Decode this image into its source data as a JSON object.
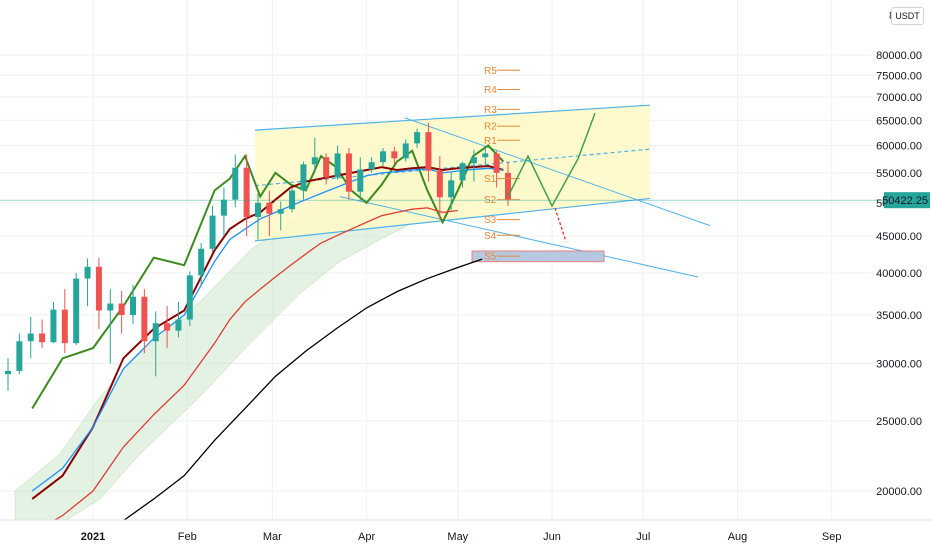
{
  "quote_currency": "USDT",
  "last_price": "50422.25",
  "colors": {
    "channel_fill": "#fff9c4",
    "channel_line": "#4fb3e8",
    "ma_green": "#3d8b1e",
    "ma_darkred": "#8b0000",
    "ma_blue": "#1e90ff",
    "ma_black": "#000000",
    "ma_red": "#e03c31",
    "cloud_fill": "#c8e6c9",
    "candle_up": "#26a69a",
    "candle_down": "#ef5350",
    "pivot": "#e6883a",
    "target_box": "#b0c4de",
    "last_price_line": "#26a69a"
  },
  "chart_data": {
    "type": "candlestick",
    "title": "",
    "xlabel": "",
    "ylabel": "",
    "log_scale": true,
    "grid": true,
    "ylim": [
      17000,
      85000
    ],
    "x_ticks": [
      "2021",
      "Feb",
      "Mar",
      "Apr",
      "May",
      "Jun",
      "Jul",
      "Aug",
      "Sep"
    ],
    "y_ticks": [
      {
        "value": 20000,
        "label": "20000.00"
      },
      {
        "value": 25000,
        "label": "25000.00"
      },
      {
        "value": 30000,
        "label": "30000.00"
      },
      {
        "value": 35000,
        "label": "35000.00"
      },
      {
        "value": 40000,
        "label": "40000.00"
      },
      {
        "value": 45000,
        "label": "45000.00"
      },
      {
        "value": 50000,
        "label": "50000.00"
      },
      {
        "value": 55000,
        "label": "55000.00"
      },
      {
        "value": 60000,
        "label": "60000.00"
      },
      {
        "value": 65000,
        "label": "65000.00"
      },
      {
        "value": 70000,
        "label": "70000.00"
      },
      {
        "value": 75000,
        "label": "75000.00"
      },
      {
        "value": 80000,
        "label": "80000.00"
      }
    ],
    "top_clipped_tick": "8",
    "pivot_levels": [
      {
        "label": "R5",
        "value": 76200
      },
      {
        "label": "R4",
        "value": 71700
      },
      {
        "label": "R3",
        "value": 67300
      },
      {
        "label": "R2",
        "value": 63800
      },
      {
        "label": "R1",
        "value": 61000
      },
      {
        "label": "S1",
        "value": 54000
      },
      {
        "label": "S2",
        "value": 50500
      },
      {
        "label": "S3",
        "value": 47400
      },
      {
        "label": "S4",
        "value": 45100
      },
      {
        "label": "S5",
        "value": 42200
      }
    ],
    "candles": [
      [
        29000,
        30500,
        27500,
        29300
      ],
      [
        29300,
        33000,
        29000,
        32200
      ],
      [
        32200,
        34800,
        30500,
        33000
      ],
      [
        33000,
        34500,
        31500,
        32100
      ],
      [
        32100,
        36500,
        32000,
        35600
      ],
      [
        35600,
        38000,
        31000,
        32000
      ],
      [
        32000,
        40000,
        31800,
        39300
      ],
      [
        39300,
        41900,
        36000,
        40800
      ],
      [
        40800,
        42000,
        33500,
        35500
      ],
      [
        35500,
        38000,
        30000,
        36300
      ],
      [
        36300,
        37800,
        33000,
        35000
      ],
      [
        35000,
        38500,
        34000,
        37100
      ],
      [
        37100,
        38000,
        31000,
        32200
      ],
      [
        32200,
        35400,
        28800,
        34100
      ],
      [
        34100,
        36000,
        31500,
        33300
      ],
      [
        33300,
        36500,
        32600,
        34500
      ],
      [
        34500,
        40200,
        33800,
        39700
      ],
      [
        39700,
        44000,
        38500,
        43200
      ],
      [
        43200,
        49500,
        42800,
        48000
      ],
      [
        48000,
        52500,
        45000,
        50500
      ],
      [
        50500,
        58300,
        49300,
        55900
      ],
      [
        55900,
        58300,
        45000,
        47800
      ],
      [
        47800,
        51500,
        44500,
        50000
      ],
      [
        50000,
        52000,
        45000,
        48300
      ],
      [
        48300,
        50200,
        45800,
        49000
      ],
      [
        49000,
        52400,
        48500,
        52000
      ],
      [
        52000,
        57000,
        50500,
        56500
      ],
      [
        56500,
        61500,
        55000,
        57800
      ],
      [
        57800,
        58500,
        53000,
        54200
      ],
      [
        54200,
        60000,
        53800,
        58500
      ],
      [
        58500,
        59500,
        50500,
        51800
      ],
      [
        51800,
        57800,
        50300,
        55600
      ],
      [
        55600,
        57800,
        55000,
        56900
      ],
      [
        56900,
        59500,
        56200,
        58900
      ],
      [
        58900,
        59800,
        56500,
        57600
      ],
      [
        57600,
        61200,
        57000,
        60400
      ],
      [
        60400,
        63300,
        59500,
        62600
      ],
      [
        62600,
        64500,
        53500,
        55400
      ],
      [
        55400,
        58000,
        47400,
        50900
      ],
      [
        50900,
        55000,
        48800,
        53700
      ],
      [
        53700,
        57000,
        52500,
        56700
      ],
      [
        56700,
        59200,
        53500,
        57800
      ],
      [
        57800,
        59500,
        56200,
        58500
      ],
      [
        58500,
        59000,
        52500,
        55000
      ],
      [
        55000,
        57000,
        49500,
        50422.25
      ]
    ],
    "series": [
      {
        "name": "",
        "type": "line",
        "color_key": "ma_green",
        "values": [
          [
            0,
            26000
          ],
          [
            10,
            30500
          ],
          [
            20,
            31500
          ],
          [
            30,
            36000
          ],
          [
            40,
            42000
          ],
          [
            50,
            41000
          ],
          [
            60,
            52000
          ],
          [
            65,
            54000
          ],
          [
            70,
            58000
          ],
          [
            75,
            51000
          ],
          [
            80,
            55000
          ],
          [
            85,
            53000
          ],
          [
            90,
            52000
          ],
          [
            95,
            58000
          ],
          [
            100,
            56000
          ],
          [
            105,
            52000
          ],
          [
            110,
            50000
          ],
          [
            115,
            53000
          ],
          [
            120,
            57000
          ],
          [
            125,
            59000
          ],
          [
            130,
            52000
          ],
          [
            135,
            47000
          ],
          [
            140,
            52000
          ],
          [
            145,
            58000
          ],
          [
            150,
            60000
          ],
          [
            155,
            57000
          ]
        ]
      },
      {
        "name": "",
        "type": "line",
        "color_key": "ma_darkred",
        "values": [
          [
            0,
            19500
          ],
          [
            10,
            21000
          ],
          [
            20,
            24500
          ],
          [
            30,
            30500
          ],
          [
            40,
            33500
          ],
          [
            50,
            35500
          ],
          [
            60,
            43000
          ],
          [
            65,
            46000
          ],
          [
            70,
            47500
          ],
          [
            75,
            48500
          ],
          [
            80,
            50500
          ],
          [
            85,
            52500
          ],
          [
            90,
            53500
          ],
          [
            95,
            54000
          ],
          [
            100,
            54500
          ],
          [
            105,
            55000
          ],
          [
            110,
            55500
          ],
          [
            115,
            56000
          ],
          [
            120,
            55500
          ],
          [
            125,
            55800
          ],
          [
            130,
            56000
          ],
          [
            135,
            55500
          ],
          [
            140,
            55800
          ],
          [
            145,
            56000
          ],
          [
            150,
            56200
          ],
          [
            155,
            55500
          ]
        ]
      },
      {
        "name": "",
        "type": "line",
        "color_key": "ma_blue",
        "values": [
          [
            0,
            20000
          ],
          [
            10,
            21500
          ],
          [
            20,
            24500
          ],
          [
            30,
            29500
          ],
          [
            40,
            32500
          ],
          [
            50,
            35000
          ],
          [
            60,
            41500
          ],
          [
            65,
            44500
          ],
          [
            70,
            46000
          ],
          [
            75,
            47500
          ],
          [
            80,
            48500
          ],
          [
            85,
            49500
          ],
          [
            90,
            50500
          ],
          [
            95,
            51500
          ],
          [
            100,
            52500
          ],
          [
            105,
            53500
          ],
          [
            110,
            54500
          ],
          [
            115,
            55000
          ],
          [
            120,
            55200
          ],
          [
            125,
            55500
          ],
          [
            130,
            55700
          ],
          [
            135,
            55000
          ],
          [
            140,
            55300
          ],
          [
            145,
            55600
          ],
          [
            150,
            55800
          ],
          [
            155,
            55500
          ]
        ]
      },
      {
        "name": "",
        "type": "line",
        "color_key": "ma_red",
        "values": [
          [
            0,
            17500
          ],
          [
            10,
            18500
          ],
          [
            20,
            20000
          ],
          [
            30,
            23000
          ],
          [
            40,
            25500
          ],
          [
            50,
            28000
          ],
          [
            60,
            32000
          ],
          [
            65,
            34500
          ],
          [
            70,
            36500
          ],
          [
            75,
            38000
          ],
          [
            80,
            39500
          ],
          [
            85,
            41000
          ],
          [
            90,
            42500
          ],
          [
            95,
            44000
          ],
          [
            100,
            45000
          ],
          [
            105,
            46000
          ],
          [
            110,
            47000
          ],
          [
            115,
            48000
          ],
          [
            120,
            48500
          ],
          [
            125,
            49000
          ],
          [
            130,
            49200
          ],
          [
            135,
            48500
          ],
          [
            140,
            48800
          ]
        ]
      },
      {
        "name": "",
        "type": "line",
        "color_key": "ma_black",
        "values": [
          [
            0,
            17000
          ],
          [
            10,
            17200
          ],
          [
            20,
            17500
          ],
          [
            30,
            18200
          ],
          [
            40,
            19500
          ],
          [
            50,
            21000
          ],
          [
            60,
            23500
          ],
          [
            70,
            26000
          ],
          [
            80,
            28800
          ],
          [
            90,
            31200
          ],
          [
            100,
            33500
          ],
          [
            110,
            35800
          ],
          [
            120,
            37700
          ],
          [
            130,
            39300
          ],
          [
            140,
            40700
          ],
          [
            148,
            41800
          ]
        ]
      }
    ]
  }
}
